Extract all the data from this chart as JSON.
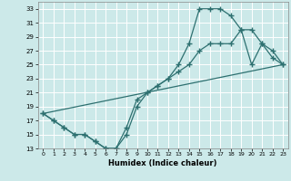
{
  "xlabel": "Humidex (Indice chaleur)",
  "background_color": "#cce9e9",
  "grid_color": "#ffffff",
  "line_color": "#2d7070",
  "xlim": [
    -0.5,
    23.5
  ],
  "ylim": [
    13,
    34
  ],
  "yticks": [
    13,
    15,
    17,
    19,
    21,
    23,
    25,
    27,
    29,
    31,
    33
  ],
  "xticks": [
    0,
    1,
    2,
    3,
    4,
    5,
    6,
    7,
    8,
    9,
    10,
    11,
    12,
    13,
    14,
    15,
    16,
    17,
    18,
    19,
    20,
    21,
    22,
    23
  ],
  "line1_x": [
    0,
    1,
    2,
    3,
    4,
    5,
    6,
    7,
    8,
    9,
    10,
    11,
    12,
    13,
    14,
    15,
    16,
    17,
    18,
    19,
    20,
    21,
    22,
    23
  ],
  "line1_y": [
    18,
    17,
    16,
    15,
    15,
    14,
    13,
    13,
    15,
    19,
    21,
    22,
    23,
    25,
    28,
    33,
    33,
    33,
    32,
    30,
    25,
    28,
    26,
    25
  ],
  "line2_x": [
    0,
    1,
    2,
    3,
    4,
    5,
    6,
    7,
    8,
    9,
    10,
    11,
    12,
    13,
    14,
    15,
    16,
    17,
    18,
    19,
    20,
    21,
    22,
    23
  ],
  "line2_y": [
    18,
    17,
    16,
    15,
    15,
    14,
    13,
    13,
    16,
    20,
    21,
    22,
    23,
    24,
    25,
    27,
    28,
    28,
    28,
    30,
    30,
    28,
    27,
    25
  ],
  "line3_x": [
    0,
    23
  ],
  "line3_y": [
    18,
    25
  ]
}
